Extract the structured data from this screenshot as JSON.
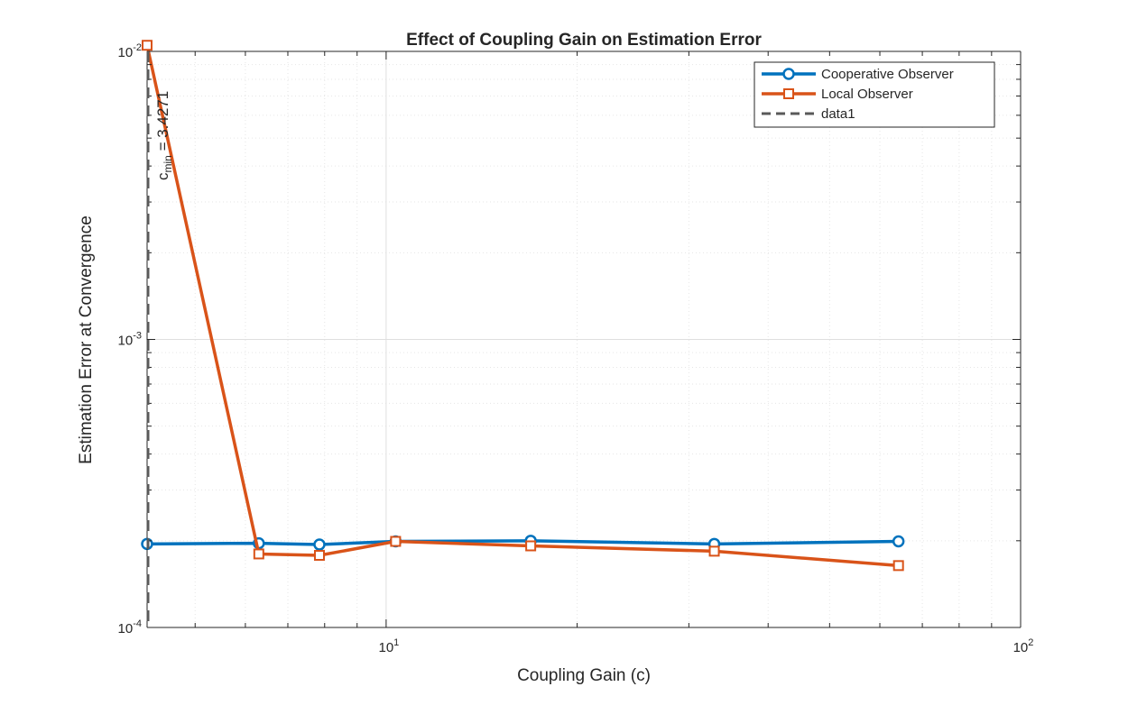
{
  "chart_data": {
    "type": "line",
    "title": "Effect of Coupling Gain on Estimation Error",
    "xlabel": "Coupling Gain (c)",
    "ylabel": "Estimation Error at Convergence",
    "x_scale": "log",
    "y_scale": "log",
    "xlim": [
      4.2,
      100
    ],
    "ylim": [
      0.0001,
      0.01
    ],
    "x_ticks": [
      {
        "value": 10,
        "base": "10",
        "exp": "1"
      },
      {
        "value": 100,
        "base": "10",
        "exp": "2"
      }
    ],
    "y_ticks": [
      {
        "value": 0.0001,
        "base": "10",
        "exp": "-4"
      },
      {
        "value": 0.001,
        "base": "10",
        "exp": "-3"
      },
      {
        "value": 0.01,
        "base": "10",
        "exp": "-2"
      }
    ],
    "grid": true,
    "minor_grid": true,
    "legend_position": "top-right",
    "series": [
      {
        "name": "Cooperative Observer",
        "color": "#0072BD",
        "marker": "circle",
        "x": [
          4.2,
          6.3,
          7.85,
          10.35,
          16.9,
          32.9,
          64.2
        ],
        "y": [
          0.000195,
          0.000196,
          0.000194,
          0.000199,
          0.0002,
          0.000195,
          0.000199
        ]
      },
      {
        "name": "Local Observer",
        "color": "#D95319",
        "marker": "square",
        "x": [
          4.2,
          6.3,
          7.85,
          10.35,
          16.9,
          32.9,
          64.2
        ],
        "y": [
          0.0105,
          0.00018,
          0.000178,
          0.000199,
          0.000192,
          0.000184,
          0.000164
        ]
      },
      {
        "name": "data1",
        "color": "#595959",
        "style": "dashed",
        "type": "vertical-line",
        "x_value": 4.2
      }
    ],
    "annotation": {
      "main": "c",
      "subscript": "min",
      "value": " = 3.4271"
    }
  }
}
